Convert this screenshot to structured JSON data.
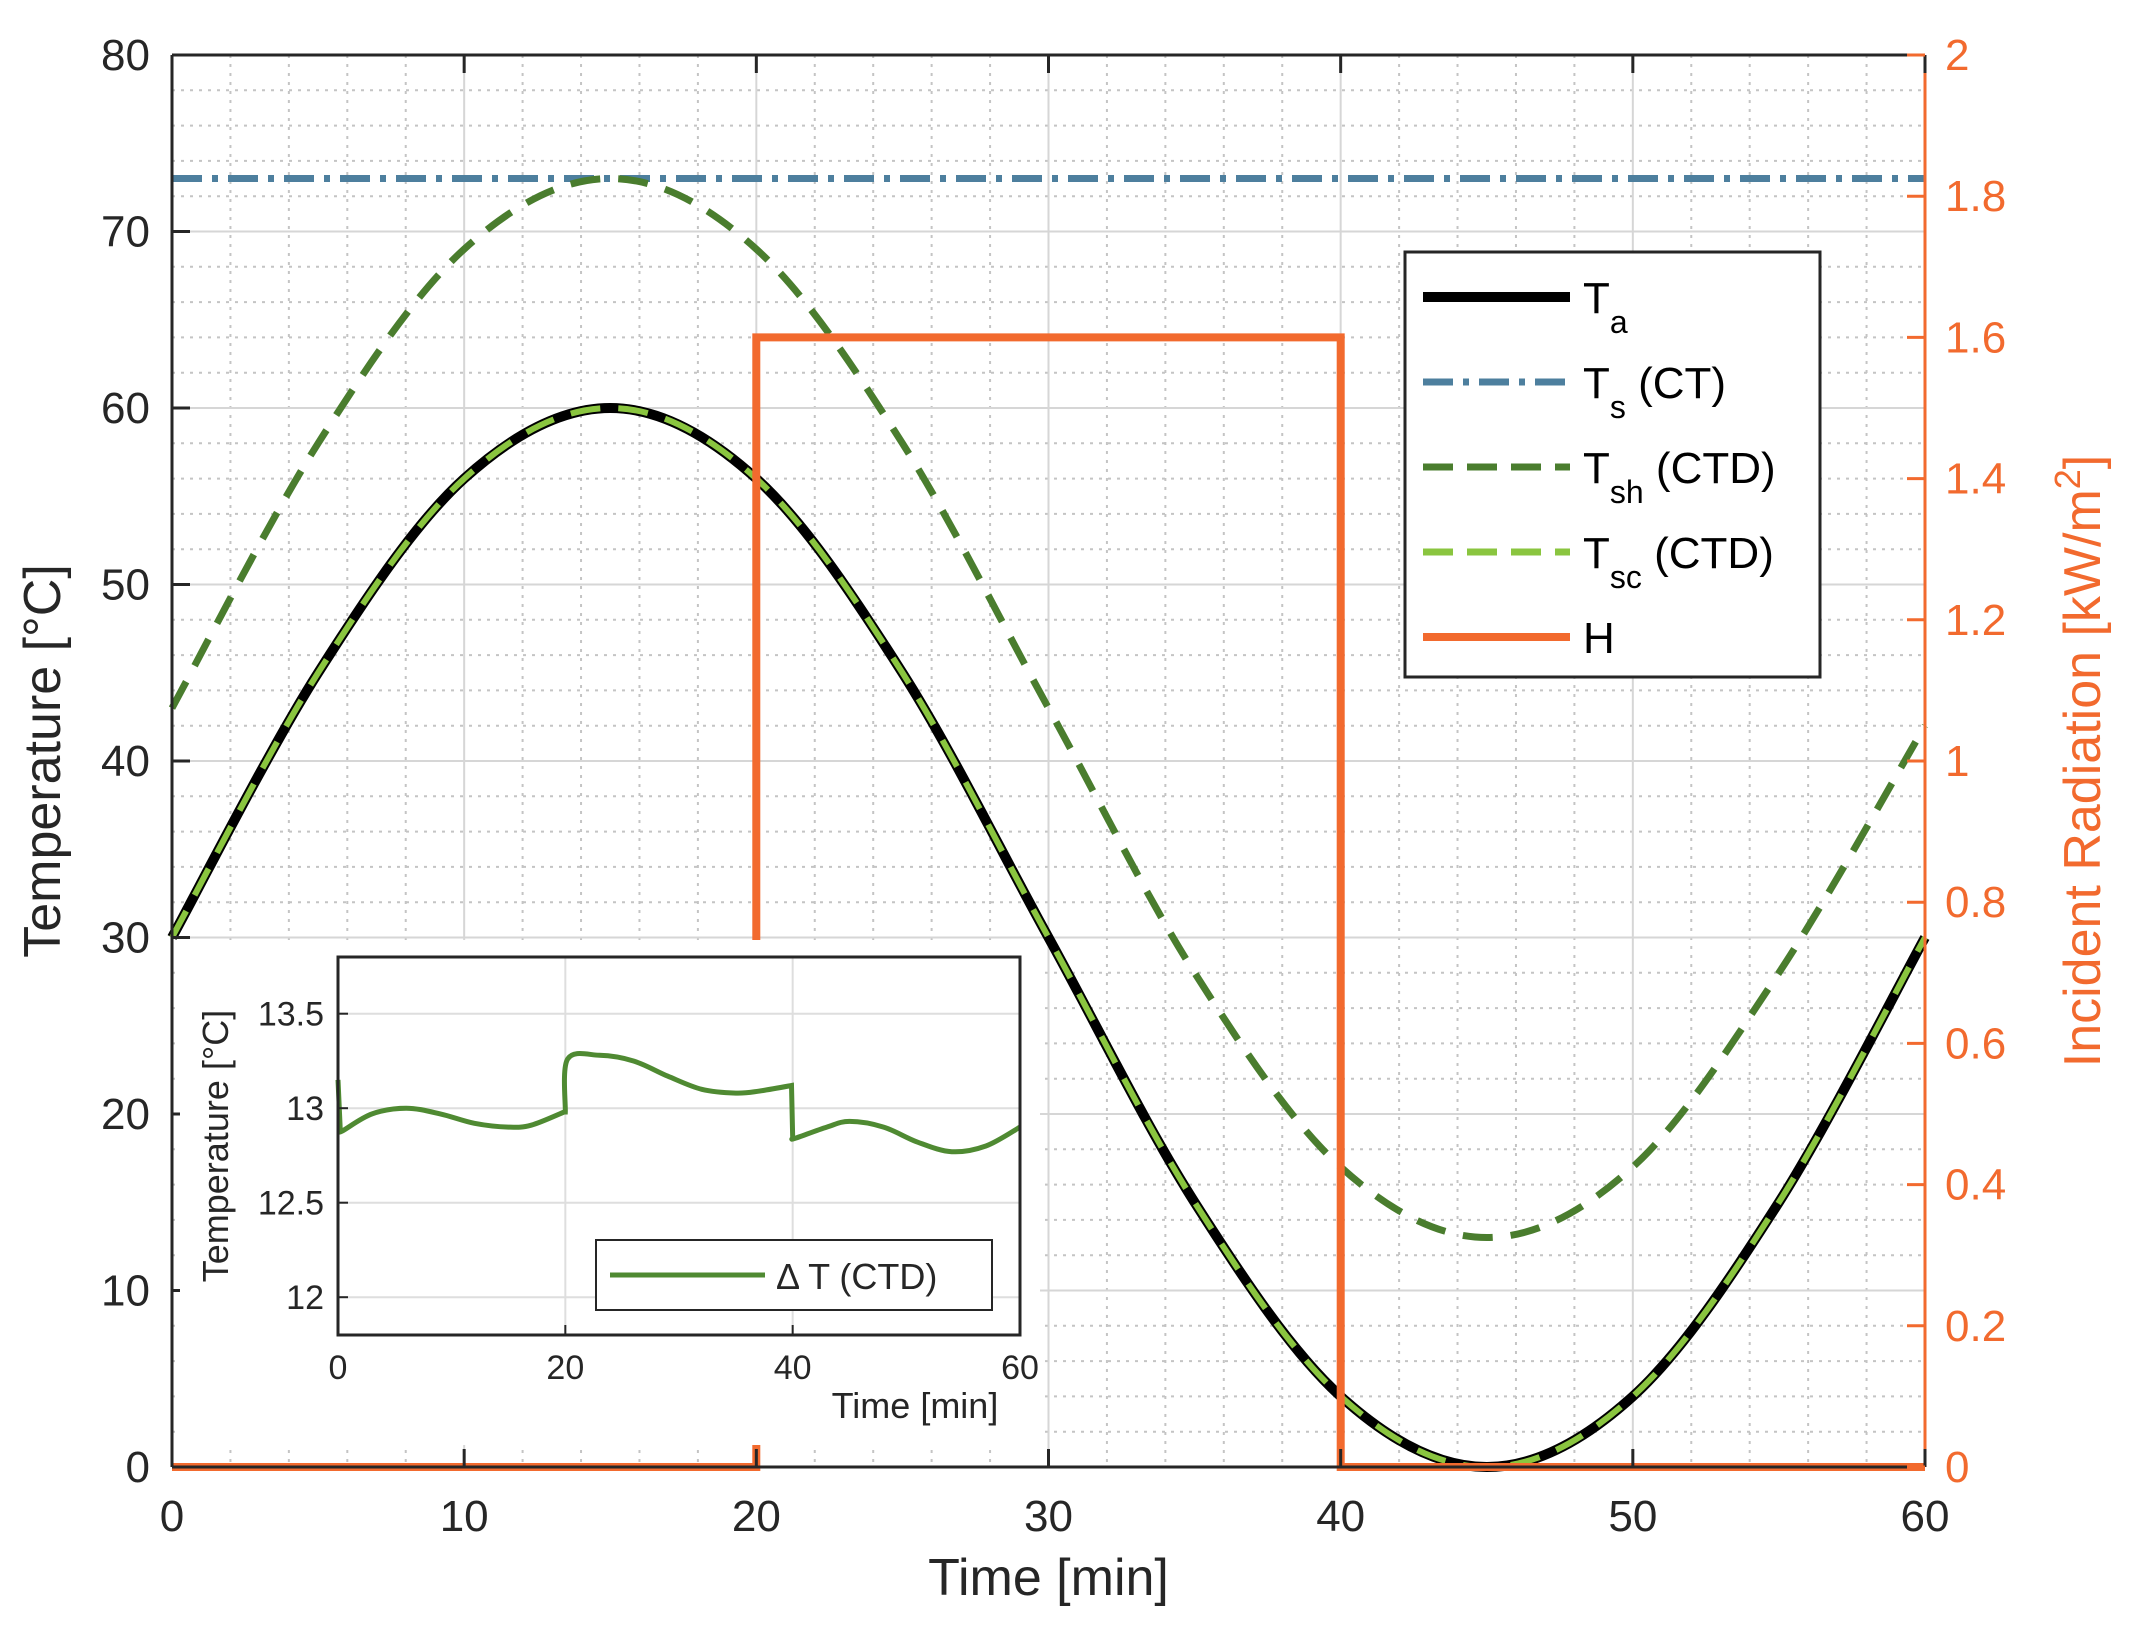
{
  "chart_data": {
    "type": "line",
    "xlabel": "Time [min]",
    "ylabel_left": "Temperature [°C]",
    "ylabel_right_main": "Incident Radiation [kW/m",
    "ylabel_right_sup": "2",
    "ylabel_right_end": "]",
    "xlim": [
      0,
      60
    ],
    "ylim_left": [
      0,
      80
    ],
    "ylim_right": [
      0,
      2
    ],
    "grid": true,
    "legend_position": "top-right",
    "x_ticks": [
      "0",
      "10",
      "20",
      "30",
      "40",
      "50",
      "60"
    ],
    "y_left_ticks": [
      "0",
      "10",
      "20",
      "30",
      "40",
      "50",
      "60",
      "70",
      "80"
    ],
    "y_right_ticks": [
      "0",
      "0.2",
      "0.4",
      "0.6",
      "0.8",
      "1",
      "1.2",
      "1.4",
      "1.6",
      "1.8",
      "2"
    ],
    "colors": {
      "Ta": "#000000",
      "Ts": "#4d7f9e",
      "Tsh": "#4a7d2e",
      "Tsc": "#8ac53f",
      "H": "#f26a2e",
      "DeltaT": "#4f8a32",
      "axis_right": "#f26a2e",
      "axis": "#262626"
    },
    "series": [
      {
        "name": "T_a",
        "legend_main": "T",
        "legend_sub": "a",
        "legend_suffix": "",
        "axis": "left",
        "style": "solid",
        "x": [
          0,
          5,
          10,
          15,
          20,
          25,
          30,
          35,
          40,
          45,
          50,
          55,
          60
        ],
        "y": [
          30,
          45,
          56,
          60,
          56,
          45,
          30,
          15,
          4,
          0,
          4,
          15,
          30
        ]
      },
      {
        "name": "T_s (CT)",
        "legend_main": "T",
        "legend_sub": "s",
        "legend_suffix": " (CT)",
        "axis": "left",
        "style": "dashdot",
        "x": [
          0,
          10,
          20,
          30,
          40,
          50,
          60
        ],
        "y": [
          73,
          73,
          73,
          73,
          73,
          73,
          73
        ]
      },
      {
        "name": "T_sh (CTD)",
        "legend_main": "T",
        "legend_sub": "sh",
        "legend_suffix": " (CTD)",
        "axis": "left",
        "style": "dashed",
        "x": [
          0,
          5,
          10,
          15,
          20,
          25,
          30,
          35,
          40,
          45,
          50,
          55,
          60
        ],
        "y": [
          43,
          58,
          69,
          73,
          69,
          58,
          43,
          28,
          17,
          13,
          17,
          28,
          42
        ]
      },
      {
        "name": "T_sc (CTD)",
        "legend_main": "T",
        "legend_sub": "sc",
        "legend_suffix": " (CTD)",
        "axis": "left",
        "style": "dashed",
        "x": [
          0,
          5,
          10,
          15,
          20,
          25,
          30,
          35,
          40,
          45,
          50,
          55,
          60
        ],
        "y": [
          30,
          45,
          56,
          60,
          56,
          45,
          30,
          15,
          4,
          0,
          4,
          15,
          30
        ]
      },
      {
        "name": "H",
        "legend_main": "H",
        "legend_sub": "",
        "legend_suffix": "",
        "axis": "right",
        "style": "solid",
        "x": [
          0,
          20,
          20,
          40,
          40,
          60
        ],
        "y": [
          0,
          0,
          1.6,
          1.6,
          0,
          0
        ]
      }
    ],
    "inset": {
      "type": "line",
      "xlabel": "Time [min]",
      "ylabel": "Temperature [°C]",
      "xlim": [
        0,
        60
      ],
      "ylim": [
        11.8,
        13.8
      ],
      "x_ticks": [
        "0",
        "20",
        "40",
        "60"
      ],
      "y_ticks": [
        "12",
        "12.5",
        "13",
        "13.5"
      ],
      "legend_label": "Δ T (CTD)",
      "series": {
        "name": "Δ T (CTD)",
        "x": [
          0,
          0.2,
          0.4,
          3,
          6,
          9,
          12,
          15,
          17,
          19.9,
          20,
          20.2,
          23,
          26,
          29,
          32,
          35,
          37,
          39.9,
          40,
          40.2,
          43,
          45,
          48,
          51,
          54,
          57,
          60
        ],
        "y": [
          13.15,
          12.88,
          12.88,
          12.97,
          13.0,
          12.97,
          12.92,
          12.9,
          12.91,
          12.98,
          12.98,
          13.26,
          13.28,
          13.25,
          13.17,
          13.1,
          13.08,
          13.09,
          13.12,
          12.84,
          12.84,
          12.9,
          12.93,
          12.9,
          12.82,
          12.77,
          12.8,
          12.9
        ]
      }
    }
  }
}
